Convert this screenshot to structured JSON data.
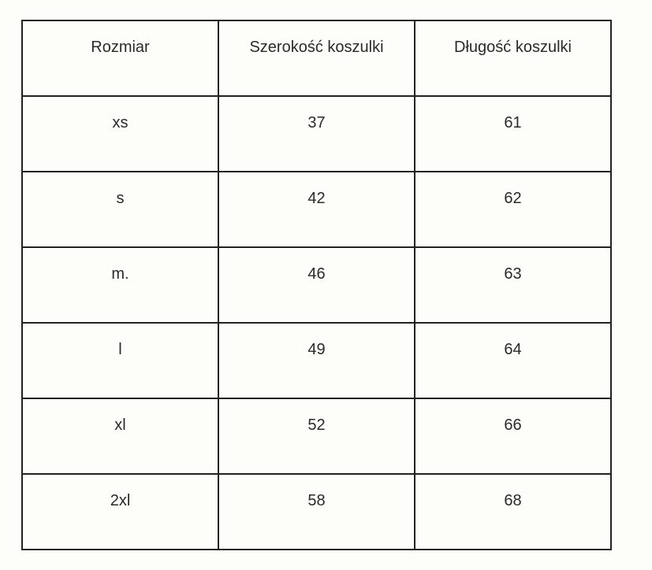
{
  "table": {
    "headers": [
      "Rozmiar",
      "Szerokość koszulki",
      "Długość koszulki"
    ],
    "rows": [
      [
        "xs",
        "37",
        "61"
      ],
      [
        "s",
        "42",
        "62"
      ],
      [
        "m.",
        "46",
        "63"
      ],
      [
        "l",
        "49",
        "64"
      ],
      [
        "xl",
        "52",
        "66"
      ],
      [
        "2xl",
        "58",
        "68"
      ]
    ]
  }
}
